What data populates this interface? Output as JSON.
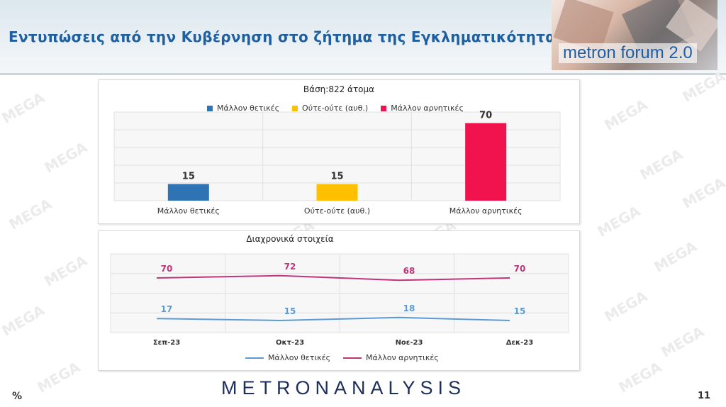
{
  "slide": {
    "title": "Εντυπώσεις από την Κυβέρνηση στο ζήτημα της Εγκληματικότητας",
    "logo": "metron forum 2.0",
    "brand": "METRONANALYSIS",
    "percent": "%",
    "page": "11",
    "watermark": "MEGA"
  },
  "colors": {
    "positive": "#2e74b5",
    "neutral": "#ffc000",
    "negative": "#f0134d",
    "line_positive": "#5b9bd5",
    "line_negative": "#c0357a",
    "title": "#1f5fa0"
  },
  "chart_data": [
    {
      "type": "bar",
      "title": "Βάση:822 άτομα",
      "categories": [
        "Μάλλον θετικές",
        "Ούτε-ούτε (αυθ.)",
        "Μάλλον αρνητικές"
      ],
      "values": [
        15,
        15,
        70
      ],
      "legend": [
        "Μάλλον θετικές",
        "Ούτε-ούτε (αυθ.)",
        "Μάλλον αρνητικές"
      ],
      "legend_position": "top",
      "ylim": [
        0,
        80
      ],
      "grid": true
    },
    {
      "type": "line",
      "title": "Διαχρονικά στοιχεία",
      "categories": [
        "Σεπ-23",
        "Οκτ-23",
        "Νοε-23",
        "Δεκ-23"
      ],
      "series": [
        {
          "name": "Μάλλον θετικές",
          "values": [
            17,
            15,
            18,
            15
          ]
        },
        {
          "name": "Μάλλον αρνητικές",
          "values": [
            70,
            72,
            68,
            70
          ]
        }
      ],
      "legend_position": "bottom",
      "grid": true
    }
  ]
}
